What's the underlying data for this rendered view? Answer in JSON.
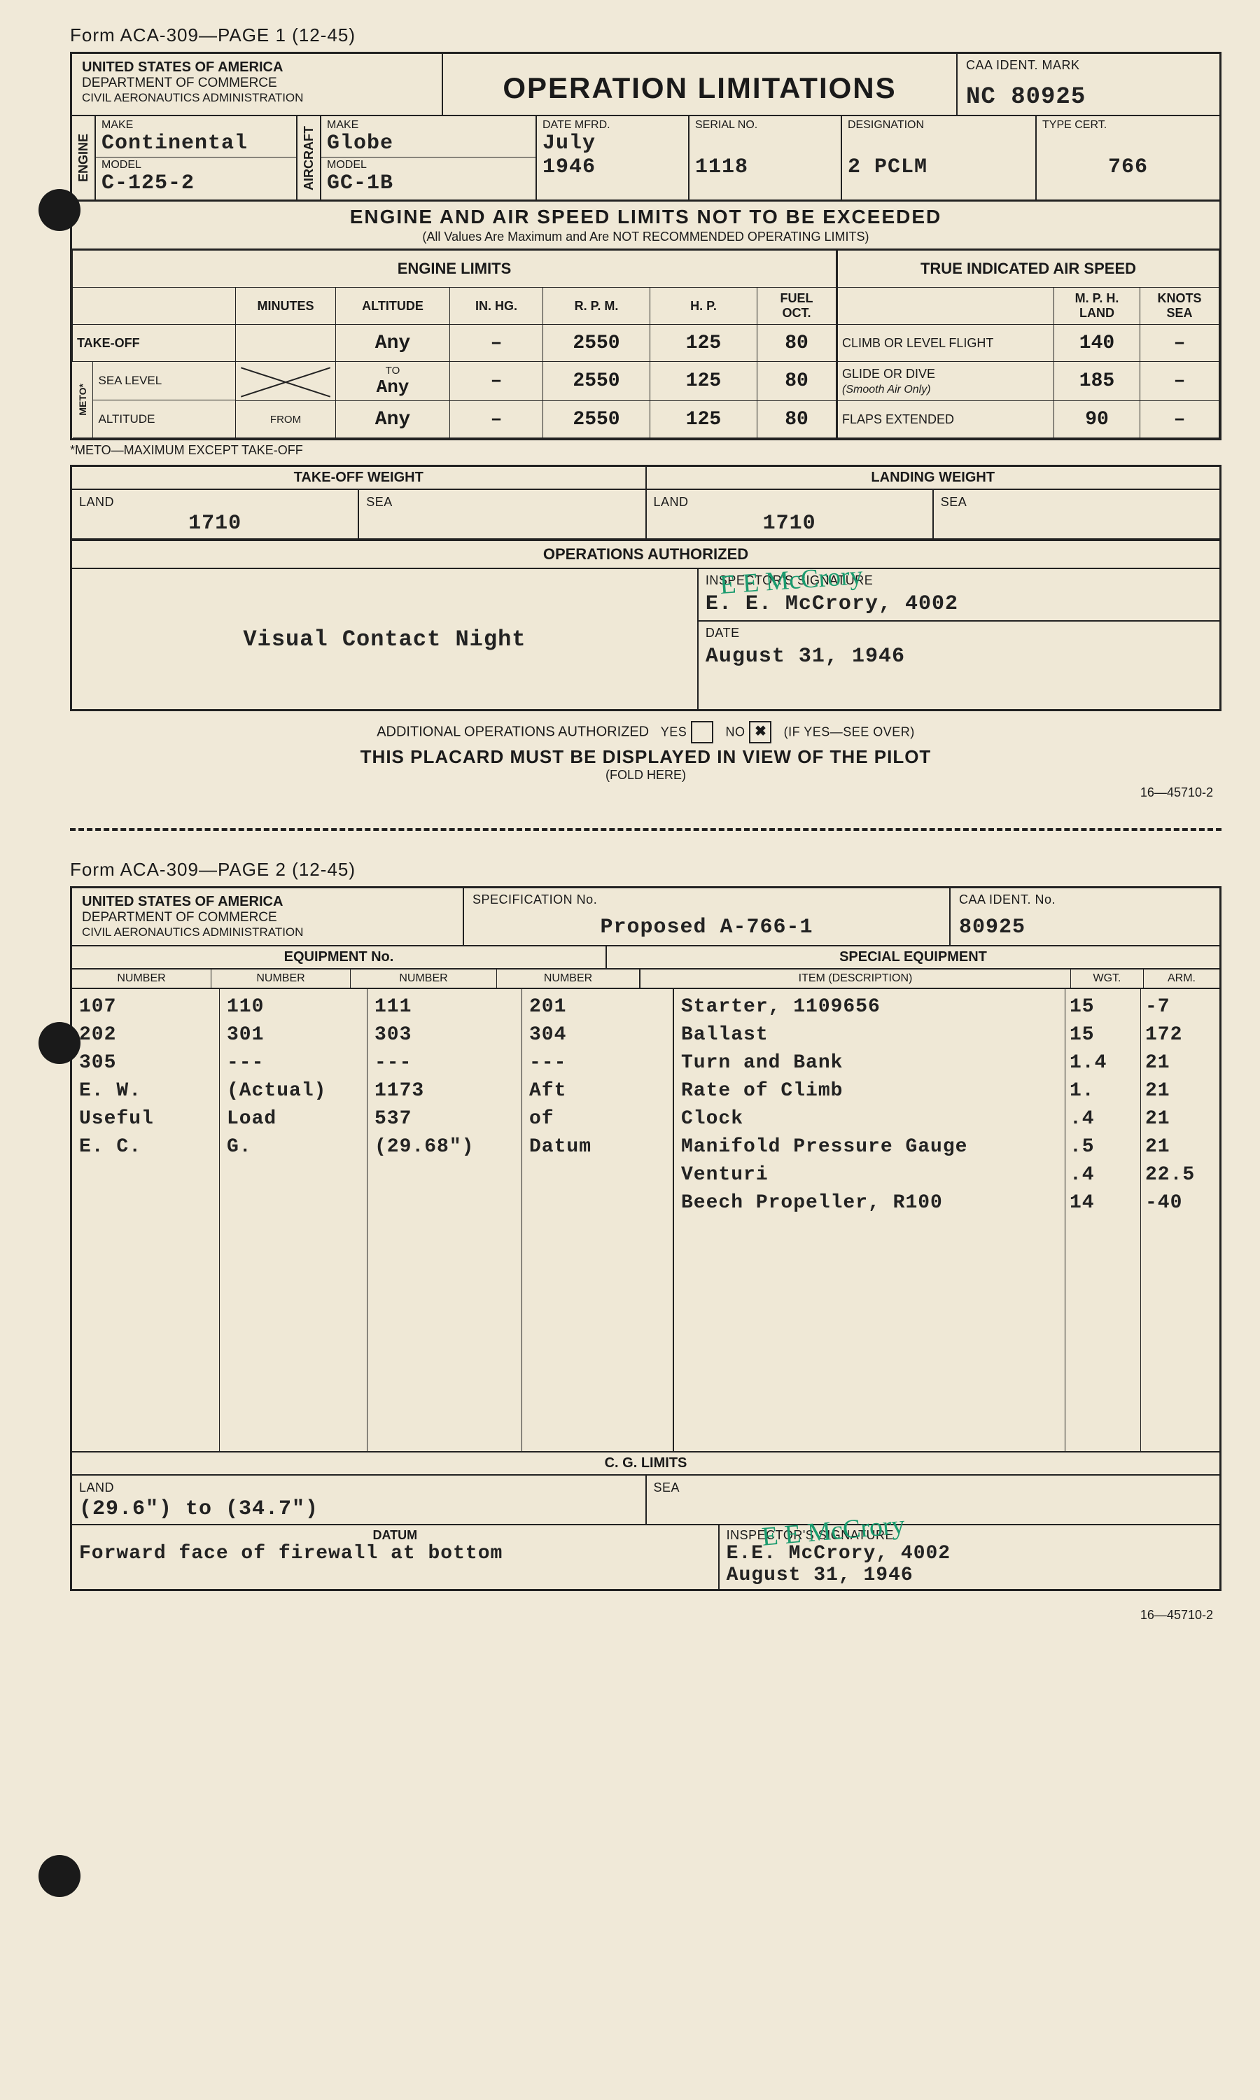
{
  "form_header_p1": "Form ACA-309—PAGE 1 (12-45)",
  "form_header_p2": "Form ACA-309—PAGE 2 (12-45)",
  "agency": {
    "line1": "UNITED STATES OF AMERICA",
    "line2": "DEPARTMENT OF COMMERCE",
    "line3": "CIVIL AERONAUTICS ADMINISTRATION"
  },
  "title": "OPERATION LIMITATIONS",
  "caa_mark_label": "CAA IDENT. MARK",
  "caa_mark": "NC 80925",
  "engine": {
    "make_label": "MAKE",
    "make": "Continental",
    "model_label": "MODEL",
    "model": "C-125-2",
    "side": "ENGINE"
  },
  "aircraft": {
    "make_label": "MAKE",
    "make": "Globe",
    "model_label": "MODEL",
    "model": "GC-1B",
    "side": "AIRCRAFT"
  },
  "date_mfrd_label": "DATE MFRD.",
  "date_mfrd": "July\n1946",
  "serial_label": "SERIAL NO.",
  "serial": "1118",
  "designation_label": "DESIGNATION",
  "designation": "2 PCLM",
  "type_cert_label": "TYPE CERT.",
  "type_cert": "766",
  "limits_title": "ENGINE AND AIR SPEED LIMITS NOT TO BE EXCEEDED",
  "limits_sub": "(All Values Are Maximum and Are NOT RECOMMENDED OPERATING LIMITS)",
  "eng_header": "ENGINE LIMITS",
  "tias_header": "TRUE INDICATED AIR SPEED",
  "cols": {
    "minutes": "MINUTES",
    "alt": "ALTITUDE",
    "inhg": "IN. HG.",
    "rpm": "R. P. M.",
    "hp": "H. P.",
    "fuel": "FUEL\nOCT.",
    "mph": "M. P. H.\nLAND",
    "knots": "KNOTS\nSEA"
  },
  "rows": {
    "takeoff": "TAKE-OFF",
    "sealevel": "SEA LEVEL",
    "altitude": "ALTITUDE",
    "meto_side": "METO*",
    "to": "TO",
    "from": "FROM"
  },
  "eng_vals": [
    [
      "",
      "Any",
      "–",
      "2550",
      "125",
      "80"
    ],
    [
      "",
      "Any",
      "–",
      "2550",
      "125",
      "80"
    ],
    [
      "",
      "Any",
      "–",
      "2550",
      "125",
      "80"
    ]
  ],
  "tias_rows": [
    {
      "label": "CLIMB OR LEVEL FLIGHT",
      "mph": "140",
      "kn": "–"
    },
    {
      "label": "GLIDE OR DIVE",
      "sub": "(Smooth Air Only)",
      "mph": "185",
      "kn": "–"
    },
    {
      "label": "FLAPS EXTENDED",
      "mph": "90",
      "kn": "–"
    }
  ],
  "meto_note": "*METO—MAXIMUM EXCEPT TAKE-OFF",
  "tow_label": "TAKE-OFF WEIGHT",
  "lw_label": "LANDING WEIGHT",
  "land": "LAND",
  "sea": "SEA",
  "tow_land": "1710",
  "tow_sea": "",
  "lw_land": "1710",
  "lw_sea": "",
  "ops_auth": "OPERATIONS AUTHORIZED",
  "ops_text": "Visual Contact Night",
  "insp_label": "INSPECTOR'S SIGNATURE",
  "insp_name": "E. E. McCrory, 4002",
  "date_label": "DATE",
  "date": "August 31, 1946",
  "add_ops": "ADDITIONAL OPERATIONS AUTHORIZED",
  "yes": "YES",
  "no": "NO",
  "see_over": "(IF YES—SEE OVER)",
  "placard": "THIS PLACARD MUST BE DISPLAYED IN VIEW OF THE PILOT",
  "fold": "(FOLD HERE)",
  "foot": "16—45710-2",
  "p2": {
    "spec_label": "SPECIFICATION No.",
    "spec": "Proposed A-766-1",
    "caa_label": "CAA IDENT. No.",
    "caa": "80925",
    "equip_header": "EQUIPMENT No.",
    "spec_equip": "SPECIAL EQUIPMENT",
    "num_hdr": "NUMBER",
    "item_hdr": "ITEM (DESCRIPTION)",
    "wgt_hdr": "WGT.",
    "arm_hdr": "ARM.",
    "equip_nums": [
      [
        "107",
        "110",
        "111",
        "201"
      ],
      [
        "202",
        "301",
        "303",
        "304"
      ],
      [
        "305",
        "---",
        "---",
        "---"
      ],
      [
        "E. W.",
        "(Actual)",
        "1173",
        ""
      ],
      [
        "Useful",
        "Load",
        "537",
        ""
      ],
      [
        "E. C.",
        "G.",
        "(29.68\")",
        "Aft"
      ],
      [
        "",
        "",
        "",
        "of"
      ],
      [
        "",
        "",
        "",
        "Datum"
      ]
    ],
    "items": [
      {
        "d": "Starter, 1109656",
        "w": "15",
        "a": "-7"
      },
      {
        "d": "Ballast",
        "w": "15",
        "a": "172"
      },
      {
        "d": "Turn and Bank",
        "w": "1.4",
        "a": "21"
      },
      {
        "d": "Rate of Climb",
        "w": "1.",
        "a": "21"
      },
      {
        "d": "Clock",
        "w": ".4",
        "a": "21"
      },
      {
        "d": "Manifold Pressure Gauge",
        "w": ".5",
        "a": "21"
      },
      {
        "d": "Venturi",
        "w": ".4",
        "a": "22.5"
      },
      {
        "d": "Beech Propeller, R100",
        "w": "14",
        "a": "-40"
      }
    ],
    "cg_label": "C. G. LIMITS",
    "cg_land": "(29.6\") to (34.7\")",
    "datum_label": "DATUM",
    "datum": "Forward face of firewall at bottom",
    "insp2": "E.E. McCrory, 4002",
    "date2": "August 31, 1946"
  },
  "colors": {
    "bg": "#f0e9d8",
    "ink": "#1a1a1a",
    "sig": "#1a9b6e"
  }
}
